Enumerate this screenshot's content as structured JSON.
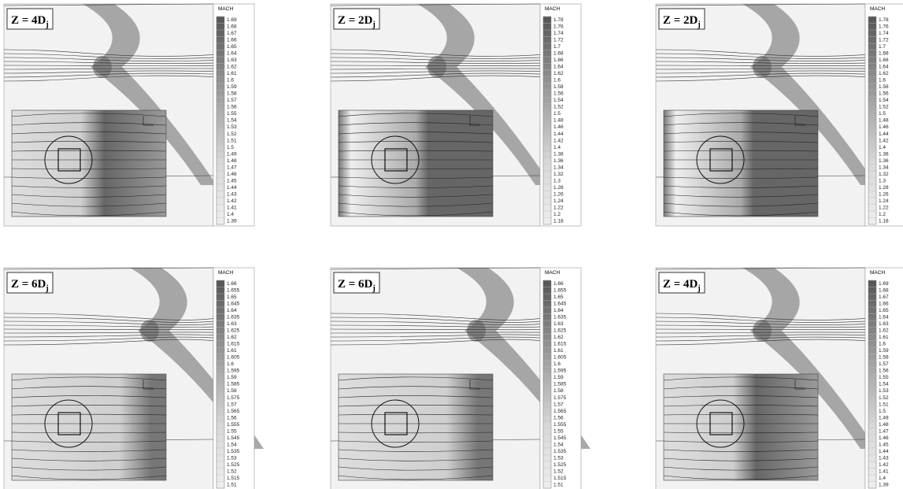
{
  "panels": [
    {
      "label": {
        "main": "Z = 4D",
        "sub": "j"
      },
      "colorbar": {
        "title": "MACH",
        "labels": [
          "1.69",
          "1.68",
          "1.67",
          "1.66",
          "1.65",
          "1.64",
          "1.63",
          "1.62",
          "1.61",
          "1.6",
          "1.59",
          "1.58",
          "1.57",
          "1.56",
          "1.55",
          "1.54",
          "1.53",
          "1.52",
          "1.51",
          "1.5",
          "1.49",
          "1.48",
          "1.47",
          "1.46",
          "1.45",
          "1.44",
          "1.43",
          "1.42",
          "1.41",
          "1.4",
          "1.39"
        ]
      }
    },
    {
      "label": {
        "main": "Z = 2D",
        "sub": "j"
      },
      "colorbar": {
        "title": "MACH",
        "labels": [
          "1.78",
          "1.76",
          "1.74",
          "1.72",
          "1.7",
          "1.68",
          "1.66",
          "1.64",
          "1.62",
          "1.6",
          "1.58",
          "1.56",
          "1.54",
          "1.52",
          "1.5",
          "1.48",
          "1.46",
          "1.44",
          "1.42",
          "1.4",
          "1.38",
          "1.36",
          "1.34",
          "1.32",
          "1.3",
          "1.28",
          "1.26",
          "1.24",
          "1.22",
          "1.2",
          "1.18"
        ]
      }
    },
    {
      "label": {
        "main": "Z = 2D",
        "sub": "j"
      },
      "colorbar": {
        "title": "MACH",
        "labels": [
          "1.78",
          "1.76",
          "1.74",
          "1.72",
          "1.7",
          "1.68",
          "1.66",
          "1.64",
          "1.62",
          "1.6",
          "1.58",
          "1.56",
          "1.54",
          "1.52",
          "1.5",
          "1.48",
          "1.46",
          "1.44",
          "1.42",
          "1.4",
          "1.38",
          "1.36",
          "1.34",
          "1.32",
          "1.3",
          "1.28",
          "1.26",
          "1.24",
          "1.22",
          "1.2",
          "1.18"
        ]
      }
    },
    {
      "label": {
        "main": "Z = 6D",
        "sub": "j"
      },
      "colorbar": {
        "title": "MACH",
        "labels": [
          "1.66",
          "1.655",
          "1.65",
          "1.645",
          "1.64",
          "1.635",
          "1.63",
          "1.625",
          "1.62",
          "1.615",
          "1.61",
          "1.605",
          "1.6",
          "1.595",
          "1.59",
          "1.585",
          "1.58",
          "1.575",
          "1.57",
          "1.565",
          "1.56",
          "1.555",
          "1.55",
          "1.545",
          "1.54",
          "1.535",
          "1.53",
          "1.525",
          "1.52",
          "1.515",
          "1.51"
        ]
      }
    },
    {
      "label": {
        "main": "Z = 6D",
        "sub": "j"
      },
      "colorbar": {
        "title": "MACH",
        "labels": [
          "1.66",
          "1.655",
          "1.65",
          "1.645",
          "1.64",
          "1.635",
          "1.63",
          "1.625",
          "1.62",
          "1.615",
          "1.61",
          "1.605",
          "1.6",
          "1.595",
          "1.59",
          "1.585",
          "1.58",
          "1.575",
          "1.57",
          "1.565",
          "1.56",
          "1.555",
          "1.55",
          "1.545",
          "1.54",
          "1.535",
          "1.53",
          "1.525",
          "1.52",
          "1.515",
          "1.51"
        ]
      }
    },
    {
      "label": {
        "main": "Z = 4D",
        "sub": "j"
      },
      "colorbar": {
        "title": "MACH",
        "labels": [
          "1.69",
          "1.68",
          "1.67",
          "1.66",
          "1.65",
          "1.64",
          "1.63",
          "1.62",
          "1.61",
          "1.6",
          "1.59",
          "1.58",
          "1.57",
          "1.56",
          "1.55",
          "1.54",
          "1.53",
          "1.52",
          "1.51",
          "1.5",
          "1.49",
          "1.48",
          "1.47",
          "1.46",
          "1.45",
          "1.44",
          "1.43",
          "1.42",
          "1.41",
          "1.4",
          "1.39"
        ]
      }
    }
  ]
}
